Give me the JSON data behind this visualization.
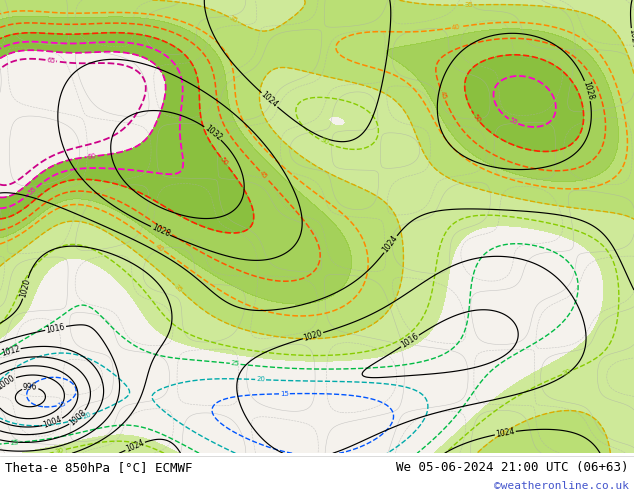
{
  "title_left": "Theta-e 850hPa [°C] ECMWF",
  "title_right": "We 05-06-2024 21:00 UTC (06+63)",
  "copyright": "©weatheronline.co.uk",
  "bg_color": "#ffffff",
  "map_bg": "#f0ede8",
  "fig_width": 6.34,
  "fig_height": 4.9,
  "dpi": 100,
  "bottom_label_color": "#000000",
  "copyright_color": "#4455cc",
  "label_fontsize": 9,
  "copyright_fontsize": 8
}
